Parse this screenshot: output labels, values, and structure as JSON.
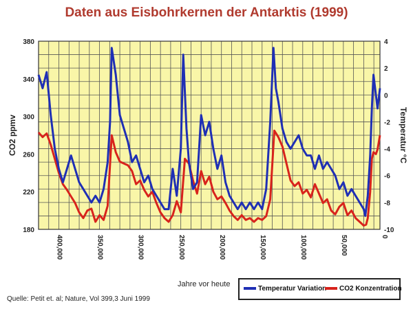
{
  "title": "Daten aus Eisbohrkernen der Antarktis (1999)",
  "source": "Quelle: Petit et. al; Nature, Vol 399,3 Juni 1999",
  "colors": {
    "plot_background": "#f9f6a8",
    "grid": "#555555",
    "temperature": "#1f2fb5",
    "co2": "#d8231c",
    "title": "#b03a2e"
  },
  "chart_data": {
    "type": "line",
    "title": "Daten aus Eisbohrkernen der Antarktis (1999)",
    "xlabel": "Jahre vor heute",
    "ylabel_left": "CO2 ppmv",
    "ylabel_right": "Temperatur °C",
    "x_reversed": true,
    "xlim": [
      420000,
      0
    ],
    "ylim_left": [
      180,
      380
    ],
    "ylim_right": [
      -10,
      4
    ],
    "grid": true,
    "legend_position": "bottom-right",
    "x_ticks": [
      "400,000",
      "350,000",
      "300,000",
      "250,000",
      "200,000",
      "150,000",
      "100,000",
      "50,000",
      "0"
    ],
    "y_left_ticks": [
      "380",
      "340",
      "300",
      "260",
      "220",
      "180"
    ],
    "y_right_ticks": [
      "4",
      "2",
      "0",
      "-2",
      "-4",
      "-6",
      "-8",
      "-10"
    ],
    "series": [
      {
        "name": "Temperatur Variation",
        "axis": "right",
        "x": [
          420000,
          415000,
          410000,
          405000,
          400000,
          395000,
          390000,
          385000,
          380000,
          375000,
          370000,
          365000,
          360000,
          355000,
          350000,
          345000,
          340000,
          335000,
          332000,
          330000,
          325000,
          320000,
          315000,
          310000,
          305000,
          300000,
          295000,
          290000,
          285000,
          280000,
          275000,
          270000,
          265000,
          260000,
          255000,
          250000,
          245000,
          242000,
          238000,
          235000,
          230000,
          225000,
          220000,
          215000,
          210000,
          205000,
          200000,
          195000,
          190000,
          185000,
          180000,
          175000,
          170000,
          165000,
          160000,
          155000,
          150000,
          145000,
          140000,
          135000,
          131000,
          128000,
          125000,
          120000,
          115000,
          110000,
          105000,
          100000,
          95000,
          90000,
          85000,
          80000,
          75000,
          70000,
          65000,
          60000,
          55000,
          50000,
          45000,
          40000,
          35000,
          30000,
          25000,
          20000,
          18000,
          15000,
          12000,
          10000,
          8000,
          5000,
          3000,
          0
        ],
        "values": [
          1.5,
          0.5,
          1.7,
          -1.5,
          -4,
          -5.5,
          -6.5,
          -5.5,
          -4.5,
          -5.5,
          -6.5,
          -7,
          -7.5,
          -8,
          -7.5,
          -8,
          -7,
          -5,
          -2,
          3.5,
          1.5,
          -1.5,
          -2.5,
          -3.5,
          -5,
          -4.5,
          -5.5,
          -6.5,
          -6,
          -7,
          -7.5,
          -8,
          -8.5,
          -8.5,
          -5.5,
          -7.5,
          -4,
          3,
          -2.5,
          -5,
          -7,
          -6.5,
          -1.5,
          -3,
          -2,
          -4,
          -5.5,
          -4.5,
          -6.5,
          -7.5,
          -8,
          -8.5,
          -8,
          -8.5,
          -8,
          -8.5,
          -8,
          -8.5,
          -7,
          -2,
          3.5,
          0.5,
          -0.5,
          -2.5,
          -3.5,
          -4,
          -3.5,
          -3,
          -4,
          -4.5,
          -4.5,
          -5.5,
          -4.5,
          -5.5,
          -5,
          -5.5,
          -6,
          -7,
          -6.5,
          -7.5,
          -7,
          -7.5,
          -8,
          -8.5,
          -9,
          -7.5,
          -4.5,
          -1,
          1.5,
          0,
          -1,
          0.5
        ]
      },
      {
        "name": "CO2 Konzentration",
        "axis": "left",
        "x": [
          420000,
          415000,
          410000,
          405000,
          400000,
          395000,
          390000,
          385000,
          380000,
          375000,
          370000,
          365000,
          360000,
          355000,
          350000,
          345000,
          340000,
          335000,
          330000,
          325000,
          320000,
          315000,
          310000,
          305000,
          300000,
          295000,
          290000,
          285000,
          280000,
          275000,
          270000,
          265000,
          260000,
          255000,
          250000,
          245000,
          240000,
          235000,
          230000,
          225000,
          220000,
          215000,
          210000,
          205000,
          200000,
          195000,
          190000,
          185000,
          180000,
          175000,
          170000,
          165000,
          160000,
          155000,
          150000,
          145000,
          140000,
          135000,
          130000,
          125000,
          120000,
          115000,
          110000,
          105000,
          100000,
          95000,
          90000,
          85000,
          80000,
          75000,
          70000,
          65000,
          60000,
          55000,
          50000,
          45000,
          40000,
          35000,
          30000,
          25000,
          20000,
          17000,
          15000,
          12000,
          10000,
          8000,
          5000,
          3000,
          0
        ],
        "values": [
          283,
          278,
          282,
          270,
          255,
          240,
          228,
          222,
          215,
          208,
          198,
          192,
          200,
          202,
          188,
          195,
          190,
          205,
          280,
          262,
          252,
          250,
          248,
          242,
          228,
          232,
          222,
          215,
          220,
          208,
          198,
          192,
          188,
          195,
          210,
          198,
          255,
          250,
          232,
          218,
          242,
          228,
          236,
          220,
          212,
          215,
          208,
          200,
          194,
          190,
          195,
          190,
          192,
          188,
          192,
          190,
          194,
          212,
          285,
          278,
          268,
          250,
          232,
          226,
          230,
          218,
          222,
          214,
          228,
          218,
          208,
          212,
          200,
          196,
          204,
          208,
          195,
          200,
          192,
          188,
          184,
          185,
          192,
          220,
          255,
          262,
          260,
          265,
          280
        ]
      }
    ]
  }
}
